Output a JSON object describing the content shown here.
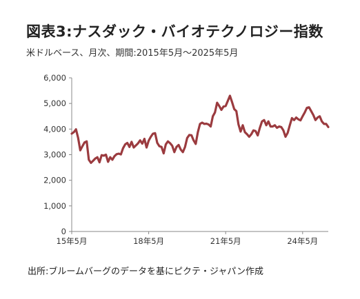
{
  "title": "図表3:ナスダック・バイオテクノロジー指数",
  "subtitle": "米ドルベース、月次、期間:2015年5月～2025年5月",
  "source": "出所:ブルームバーグのデータを基にピクテ・ジャパン作成",
  "chart_data": {
    "type": "line",
    "title": "図表3:ナスダック・バイオテクノロジー指数",
    "subtitle": "米ドルベース、月次、期間:2015年5月～2025年5月",
    "xlabel": "",
    "ylabel": "",
    "ylim": [
      0,
      6000
    ],
    "yticks": [
      0,
      1000,
      2000,
      3000,
      4000,
      5000,
      6000
    ],
    "ytick_labels": [
      "0",
      "1,000",
      "2,000",
      "3,000",
      "4,000",
      "5,000",
      "6,000"
    ],
    "x_range": [
      "2015-05",
      "2025-05"
    ],
    "xticks": [
      "2015-05",
      "2018-05",
      "2021-05",
      "2024-05"
    ],
    "xtick_labels": [
      "15年5月",
      "18年5月",
      "21年5月",
      "24年5月"
    ],
    "grid": false,
    "line_color": "#9b3b3f",
    "series": [
      {
        "x": [
          "2015-05",
          "2015-06",
          "2015-07",
          "2015-08",
          "2015-09",
          "2015-10",
          "2015-11",
          "2015-12",
          "2016-01",
          "2016-02",
          "2016-03",
          "2016-04",
          "2016-05",
          "2016-06",
          "2016-07",
          "2016-08",
          "2016-09",
          "2016-10",
          "2016-11",
          "2016-12",
          "2017-01",
          "2017-02",
          "2017-03",
          "2017-04",
          "2017-05",
          "2017-06",
          "2017-07",
          "2017-08",
          "2017-09",
          "2017-10",
          "2017-11",
          "2017-12",
          "2018-01",
          "2018-02",
          "2018-03",
          "2018-04",
          "2018-05",
          "2018-06",
          "2018-07",
          "2018-08",
          "2018-09",
          "2018-10",
          "2018-11",
          "2018-12",
          "2019-01",
          "2019-02",
          "2019-03",
          "2019-04",
          "2019-05",
          "2019-06",
          "2019-07",
          "2019-08",
          "2019-09",
          "2019-10",
          "2019-11",
          "2019-12",
          "2020-01",
          "2020-02",
          "2020-03",
          "2020-04",
          "2020-05",
          "2020-06",
          "2020-07",
          "2020-08",
          "2020-09",
          "2020-10",
          "2020-11",
          "2020-12",
          "2021-01",
          "2021-02",
          "2021-03",
          "2021-04",
          "2021-05",
          "2021-06",
          "2021-07",
          "2021-08",
          "2021-09",
          "2021-10",
          "2021-11",
          "2021-12",
          "2022-01",
          "2022-02",
          "2022-03",
          "2022-04",
          "2022-05",
          "2022-06",
          "2022-07",
          "2022-08",
          "2022-09",
          "2022-10",
          "2022-11",
          "2022-12",
          "2023-01",
          "2023-02",
          "2023-03",
          "2023-04",
          "2023-05",
          "2023-06",
          "2023-07",
          "2023-08",
          "2023-09",
          "2023-10",
          "2023-11",
          "2023-12",
          "2024-01",
          "2024-02",
          "2024-03",
          "2024-04",
          "2024-05",
          "2024-06",
          "2024-07",
          "2024-08",
          "2024-09",
          "2024-10",
          "2024-11",
          "2024-12",
          "2025-01",
          "2025-02",
          "2025-03",
          "2025-04",
          "2025-05"
        ],
        "values": [
          3820,
          3880,
          3990,
          3650,
          3170,
          3330,
          3480,
          3520,
          2800,
          2680,
          2760,
          2850,
          2900,
          2700,
          2980,
          2960,
          3000,
          2720,
          2900,
          2800,
          2940,
          3020,
          3040,
          3010,
          3250,
          3400,
          3460,
          3300,
          3500,
          3280,
          3360,
          3440,
          3560,
          3430,
          3620,
          3280,
          3550,
          3700,
          3820,
          3840,
          3460,
          3330,
          3300,
          3050,
          3400,
          3520,
          3450,
          3350,
          3100,
          3300,
          3380,
          3200,
          3100,
          3300,
          3650,
          3770,
          3760,
          3560,
          3420,
          3880,
          4200,
          4250,
          4200,
          4210,
          4180,
          4100,
          4500,
          4650,
          5030,
          4900,
          4750,
          4880,
          4900,
          5100,
          5300,
          5050,
          4780,
          4700,
          4180,
          3900,
          4150,
          3880,
          3800,
          3700,
          3800,
          3950,
          3920,
          3750,
          4050,
          4300,
          4350,
          4150,
          4300,
          4100,
          4100,
          4150,
          4050,
          4100,
          4080,
          3950,
          3700,
          3850,
          4150,
          4430,
          4350,
          4450,
          4380,
          4340,
          4500,
          4650,
          4830,
          4850,
          4700,
          4550,
          4350,
          4450,
          4500,
          4300,
          4200,
          4200,
          4080
        ]
      }
    ]
  }
}
